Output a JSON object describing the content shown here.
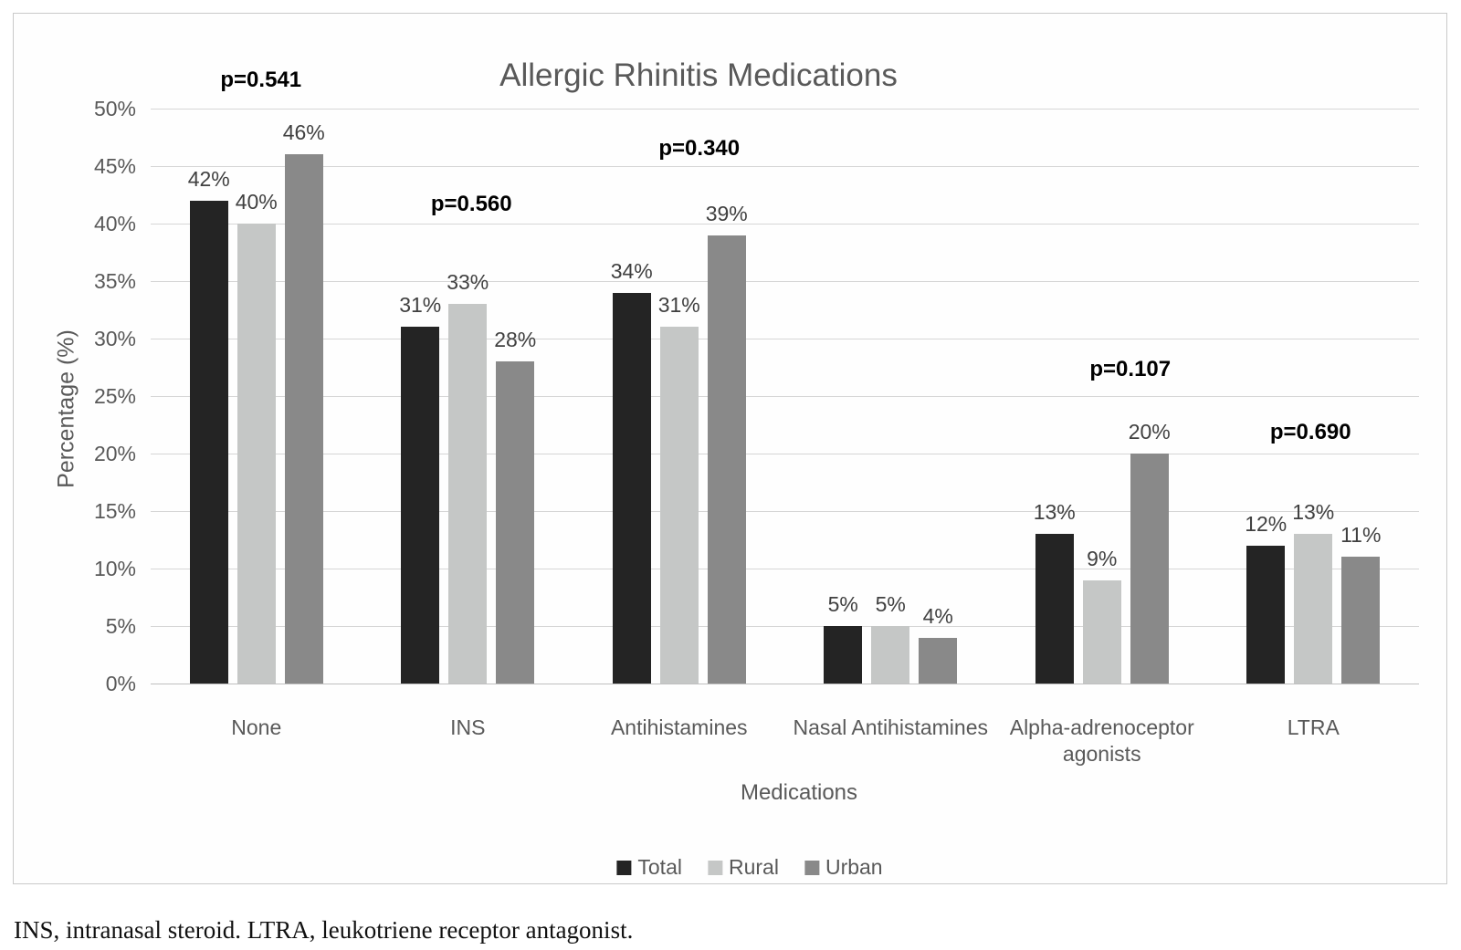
{
  "figure": {
    "footnote": "INS, intranasal steroid. LTRA, leukotriene receptor antagonist."
  },
  "colors": {
    "total": "#242424",
    "rural": "#c5c7c6",
    "urban": "#898989",
    "gridline": "#d6d6d6",
    "zero_line": "#bfbfbf",
    "tick_label": "#595959",
    "value_label": "#404040",
    "p_label": "#000000",
    "title": "#595959",
    "figure_border": "#c9c9c9"
  },
  "chart_data": {
    "type": "bar",
    "title": "Allergic Rhinitis Medications",
    "xlabel": "Medications",
    "ylabel": "Percentage (%)",
    "ylim": [
      0,
      50
    ],
    "ytick_step": 5,
    "ytick_suffix": "%",
    "grid": true,
    "legend_position": "bottom",
    "categories": [
      "None",
      "INS",
      "Antihistamines",
      "Nasal Antihistamines",
      "Alpha-adrenoceptor agonists",
      "LTRA"
    ],
    "series": [
      {
        "name": "Total",
        "color": "#242424",
        "values": [
          42,
          31,
          34,
          5,
          13,
          12
        ]
      },
      {
        "name": "Rural",
        "color": "#c5c7c6",
        "values": [
          40,
          33,
          31,
          5,
          9,
          13
        ]
      },
      {
        "name": "Urban",
        "color": "#898989",
        "values": [
          46,
          28,
          39,
          4,
          20,
          11
        ]
      }
    ],
    "value_label_suffix": "%",
    "p_values": [
      {
        "category": "None",
        "label": "p=0.541",
        "y_pct": 52.5,
        "x_offset": 5
      },
      {
        "category": "INS",
        "label": "p=0.560",
        "y_pct": 41.7,
        "x_offset": 4
      },
      {
        "category": "Antihistamines",
        "label": "p=0.340",
        "y_pct": 46.5,
        "x_offset": 22
      },
      {
        "category": "Alpha-adrenoceptor agonists",
        "label": "p=0.107",
        "y_pct": 27.3,
        "x_offset": 31
      },
      {
        "category": "LTRA",
        "label": "p=0.690",
        "y_pct": 21.8,
        "x_offset": -3
      }
    ]
  }
}
